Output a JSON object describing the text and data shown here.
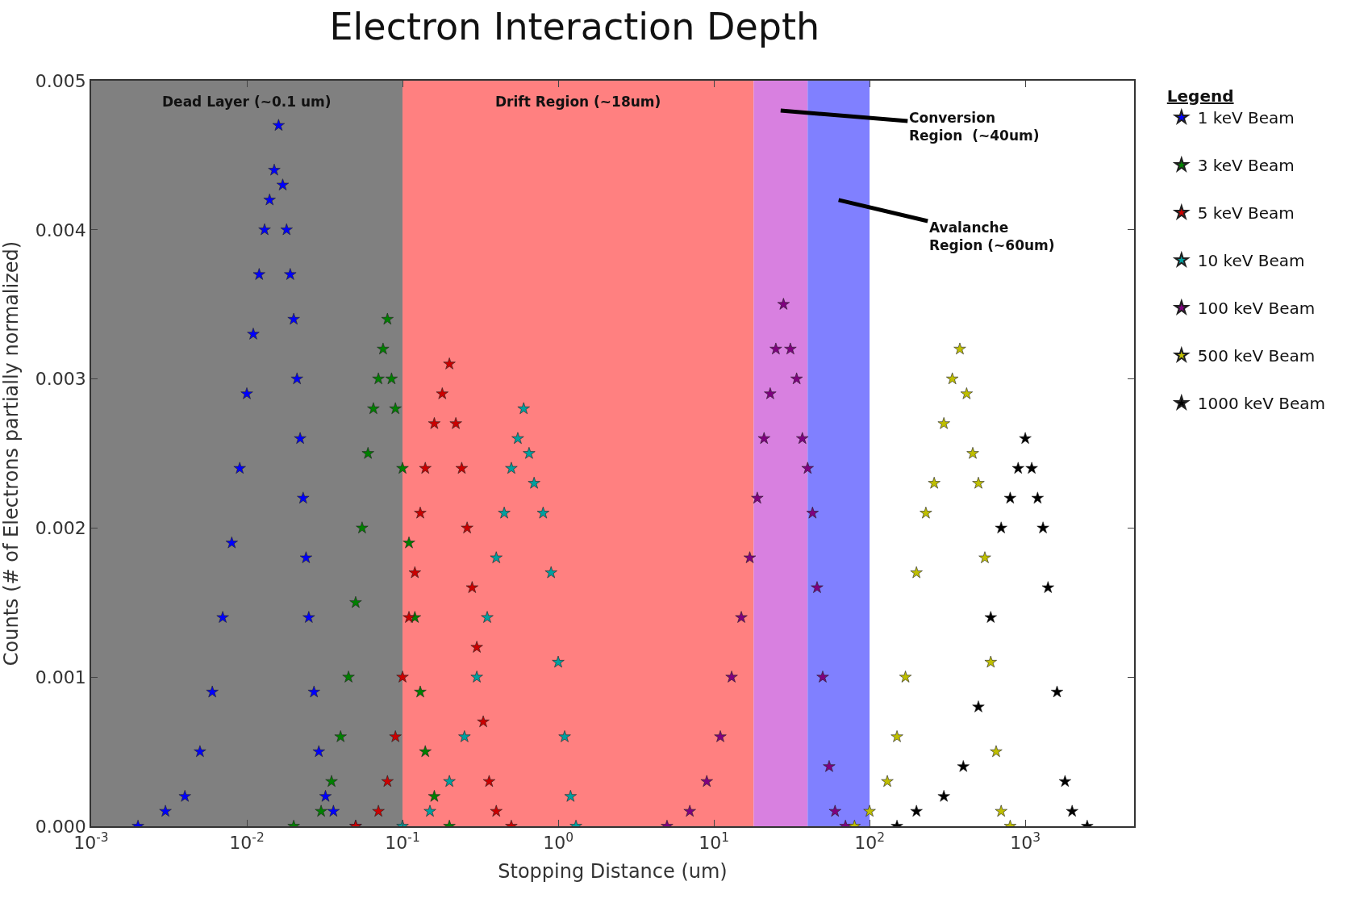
{
  "chart_data": {
    "type": "scatter",
    "title": "Electron Interaction Depth",
    "xlabel": "Stopping Distance (um)",
    "ylabel": "Counts (# of Electrons partially normalized)",
    "legend_title": "Legend",
    "legend": "right",
    "marker": "star",
    "grid": false,
    "log": "x",
    "xlim": [
      0.001,
      5000
    ],
    "xticks": [
      {
        "value": 0.001,
        "label": "10$^{-3}$"
      },
      {
        "value": 0.01,
        "label": "10$^{-2}$"
      },
      {
        "value": 0.1,
        "label": "10$^{-1}$"
      },
      {
        "value": 1,
        "label": "10$^{0}$"
      },
      {
        "value": 10,
        "label": "10$^{1}$"
      },
      {
        "value": 100,
        "label": "10$^{2}$"
      },
      {
        "value": 1000,
        "label": "10$^{3}$"
      }
    ],
    "ylim": [
      0,
      0.005
    ],
    "yticks": [
      {
        "value": 0,
        "label": "0.000"
      },
      {
        "value": 0.001,
        "label": "0.001"
      },
      {
        "value": 0.002,
        "label": "0.002"
      },
      {
        "value": 0.003,
        "label": "0.003"
      },
      {
        "value": 0.004,
        "label": "0.004"
      },
      {
        "value": 0.005,
        "label": "0.005"
      }
    ],
    "bands": [
      {
        "axis": "x",
        "from": 0.001,
        "to": 0.1,
        "label": "Dead Layer (~0.1 um)",
        "color": "#808080"
      },
      {
        "axis": "x",
        "from": 0.1,
        "to": 18,
        "label": "Drift Region (~18um)",
        "color": "#ff8080"
      },
      {
        "axis": "x",
        "from": 18,
        "to": 40,
        "label": "Conversion\nRegion  (~40um)",
        "color": "#d880e0"
      },
      {
        "axis": "x",
        "from": 40,
        "to": 100,
        "label": "Avalanche\nRegion (~60um)",
        "color": "#8080ff"
      }
    ],
    "series": [
      {
        "name": "1 keV Beam",
        "color": "#0000ff",
        "x": [
          0.002,
          0.003,
          0.004,
          0.005,
          0.006,
          0.007,
          0.008,
          0.009,
          0.01,
          0.011,
          0.012,
          0.013,
          0.014,
          0.015,
          0.016,
          0.017,
          0.018,
          0.019,
          0.02,
          0.021,
          0.022,
          0.023,
          0.024,
          0.025,
          0.027,
          0.029,
          0.032,
          0.036,
          0.05
        ],
        "values": [
          0,
          0.0001,
          0.0002,
          0.0005,
          0.0009,
          0.0014,
          0.0019,
          0.0024,
          0.0029,
          0.0033,
          0.0037,
          0.004,
          0.0042,
          0.0044,
          0.0047,
          0.0043,
          0.004,
          0.0037,
          0.0034,
          0.003,
          0.0026,
          0.0022,
          0.0018,
          0.0014,
          0.0009,
          0.0005,
          0.0002,
          0.0001,
          0
        ]
      },
      {
        "name": "3 keV Beam",
        "color": "#008000",
        "x": [
          0.02,
          0.03,
          0.035,
          0.04,
          0.045,
          0.05,
          0.055,
          0.06,
          0.065,
          0.07,
          0.075,
          0.08,
          0.085,
          0.09,
          0.1,
          0.11,
          0.12,
          0.13,
          0.14,
          0.16,
          0.2
        ],
        "values": [
          0,
          0.0001,
          0.0003,
          0.0006,
          0.001,
          0.0015,
          0.002,
          0.0025,
          0.0028,
          0.003,
          0.0032,
          0.0034,
          0.003,
          0.0028,
          0.0024,
          0.0019,
          0.0014,
          0.0009,
          0.0005,
          0.0002,
          0
        ]
      },
      {
        "name": "5 keV Beam",
        "color": "#cc0000",
        "x": [
          0.05,
          0.07,
          0.08,
          0.09,
          0.1,
          0.11,
          0.12,
          0.13,
          0.14,
          0.16,
          0.18,
          0.2,
          0.22,
          0.24,
          0.26,
          0.28,
          0.3,
          0.33,
          0.36,
          0.4,
          0.5
        ],
        "values": [
          0,
          0.0001,
          0.0003,
          0.0006,
          0.001,
          0.0014,
          0.0017,
          0.0021,
          0.0024,
          0.0027,
          0.0029,
          0.0031,
          0.0027,
          0.0024,
          0.002,
          0.0016,
          0.0012,
          0.0007,
          0.0003,
          0.0001,
          0
        ]
      },
      {
        "name": "10 keV Beam",
        "color": "#00a0a0",
        "x": [
          0.1,
          0.15,
          0.2,
          0.25,
          0.3,
          0.35,
          0.4,
          0.45,
          0.5,
          0.55,
          0.6,
          0.65,
          0.7,
          0.8,
          0.9,
          1.0,
          1.1,
          1.2,
          1.3
        ],
        "values": [
          0,
          0.0001,
          0.0003,
          0.0006,
          0.001,
          0.0014,
          0.0018,
          0.0021,
          0.0024,
          0.0026,
          0.0028,
          0.0025,
          0.0023,
          0.0021,
          0.0017,
          0.0011,
          0.0006,
          0.0002,
          0
        ]
      },
      {
        "name": "100 keV Beam",
        "color": "#800080",
        "x": [
          5,
          7,
          9,
          11,
          13,
          15,
          17,
          19,
          21,
          23,
          25,
          28,
          31,
          34,
          37,
          40,
          43,
          46,
          50,
          55,
          60,
          70
        ],
        "values": [
          0,
          0.0001,
          0.0003,
          0.0006,
          0.001,
          0.0014,
          0.0018,
          0.0022,
          0.0026,
          0.0029,
          0.0032,
          0.0035,
          0.0032,
          0.003,
          0.0026,
          0.0024,
          0.0021,
          0.0016,
          0.001,
          0.0004,
          0.0001,
          0
        ]
      },
      {
        "name": "500 keV Beam",
        "color": "#bfbf00",
        "x": [
          80,
          100,
          130,
          150,
          170,
          200,
          230,
          260,
          300,
          340,
          380,
          420,
          460,
          500,
          550,
          600,
          650,
          700,
          800
        ],
        "values": [
          0,
          0.0001,
          0.0003,
          0.0006,
          0.001,
          0.0017,
          0.0021,
          0.0023,
          0.0027,
          0.003,
          0.0032,
          0.0029,
          0.0025,
          0.0023,
          0.0018,
          0.0011,
          0.0005,
          0.0001,
          0
        ]
      },
      {
        "name": "1000 keV Beam",
        "color": "#000000",
        "x": [
          150,
          200,
          300,
          400,
          500,
          600,
          700,
          800,
          900,
          1000,
          1100,
          1200,
          1300,
          1400,
          1600,
          1800,
          2000,
          2500
        ],
        "values": [
          0,
          0.0001,
          0.0002,
          0.0004,
          0.0008,
          0.0014,
          0.002,
          0.0022,
          0.0024,
          0.0026,
          0.0024,
          0.0022,
          0.002,
          0.0016,
          0.0009,
          0.0003,
          0.0001,
          0
        ]
      }
    ]
  }
}
